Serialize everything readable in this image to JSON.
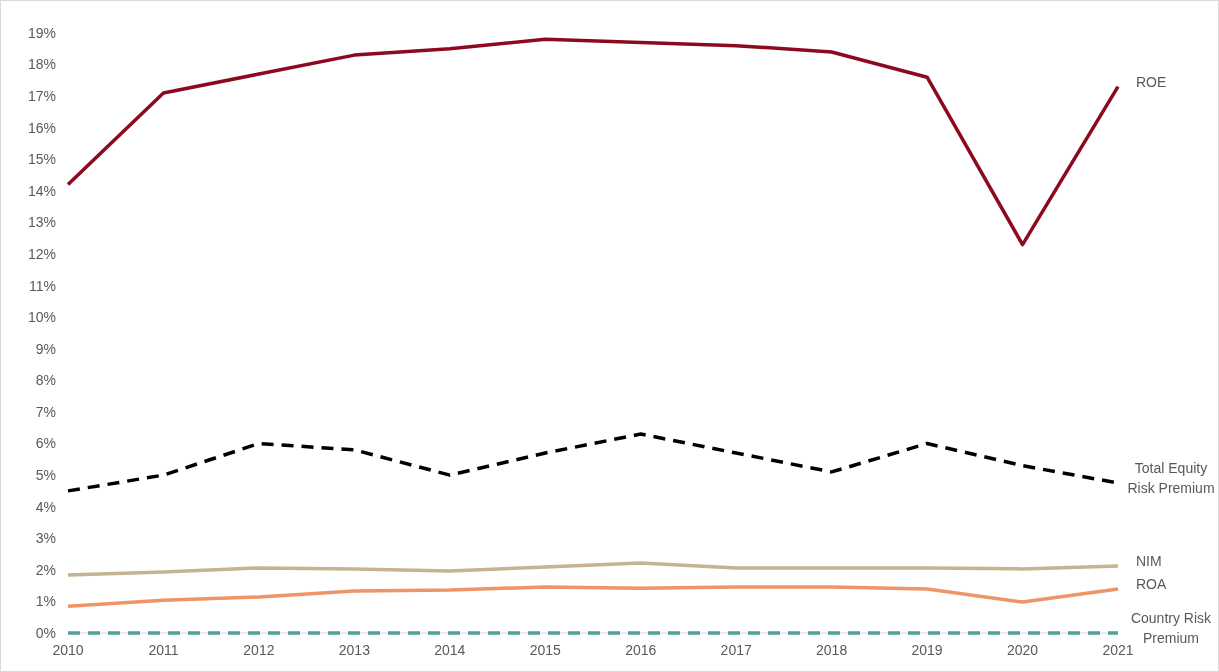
{
  "chart_data": {
    "type": "line",
    "categories": [
      "2010",
      "2011",
      "2012",
      "2013",
      "2014",
      "2015",
      "2016",
      "2017",
      "2018",
      "2019",
      "2020",
      "2021"
    ],
    "ylim": [
      0,
      19
    ],
    "yticks": [
      {
        "value": 0,
        "label": "0%"
      },
      {
        "value": 1,
        "label": "1%"
      },
      {
        "value": 2,
        "label": "2%"
      },
      {
        "value": 3,
        "label": "3%"
      },
      {
        "value": 4,
        "label": "4%"
      },
      {
        "value": 5,
        "label": "5%"
      },
      {
        "value": 6,
        "label": "6%"
      },
      {
        "value": 7,
        "label": "7%"
      },
      {
        "value": 8,
        "label": "8%"
      },
      {
        "value": 9,
        "label": "9%"
      },
      {
        "value": 10,
        "label": "10%"
      },
      {
        "value": 11,
        "label": "11%"
      },
      {
        "value": 12,
        "label": "12%"
      },
      {
        "value": 13,
        "label": "13%"
      },
      {
        "value": 14,
        "label": "14%"
      },
      {
        "value": 15,
        "label": "15%"
      },
      {
        "value": 16,
        "label": "16%"
      },
      {
        "value": 17,
        "label": "17%"
      },
      {
        "value": 18,
        "label": "18%"
      },
      {
        "value": 19,
        "label": "19%"
      }
    ],
    "grid": false,
    "series": [
      {
        "name": "ROE",
        "color": "#8b0a1f",
        "line_style": "solid",
        "values": [
          14.2,
          17.1,
          17.7,
          18.3,
          18.5,
          18.8,
          18.7,
          18.6,
          18.4,
          17.6,
          12.3,
          17.3
        ]
      },
      {
        "name": "Total Equity Risk Premium",
        "color": "#000000",
        "line_style": "dashed",
        "values": [
          4.5,
          5.0,
          6.0,
          5.8,
          5.0,
          5.7,
          6.3,
          5.7,
          5.1,
          6.0,
          5.3,
          4.75
        ]
      },
      {
        "name": "NIM",
        "color": "#c4b48f",
        "line_style": "solid",
        "values": [
          1.84,
          1.93,
          2.06,
          2.03,
          1.96,
          2.09,
          2.22,
          2.06,
          2.06,
          2.06,
          2.03,
          2.12
        ]
      },
      {
        "name": "ROA",
        "color": "#ee9466",
        "line_style": "solid",
        "values": [
          0.85,
          1.04,
          1.14,
          1.33,
          1.36,
          1.46,
          1.42,
          1.46,
          1.46,
          1.39,
          0.98,
          1.39
        ]
      },
      {
        "name": "Country Risk Premium",
        "color": "#4fa39a",
        "line_style": "dashed",
        "values": [
          0,
          0,
          0,
          0,
          0,
          0,
          0,
          0,
          0,
          0,
          0,
          0
        ]
      }
    ]
  }
}
